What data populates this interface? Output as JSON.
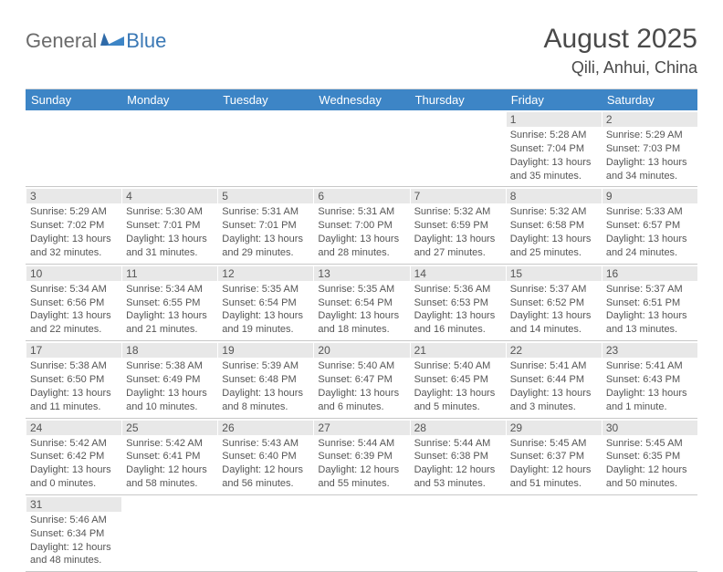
{
  "logo": {
    "part1": "General",
    "part2": "Blue"
  },
  "header": {
    "month_title": "August 2025",
    "location": "Qili, Anhui, China"
  },
  "colors": {
    "header_bg": "#3d85c6",
    "daynum_bg": "#e8e8e8",
    "text": "#555555",
    "logo_gray": "#6b6b6b",
    "logo_blue": "#3a78b5"
  },
  "day_names": [
    "Sunday",
    "Monday",
    "Tuesday",
    "Wednesday",
    "Thursday",
    "Friday",
    "Saturday"
  ],
  "weeks": [
    [
      {
        "n": "",
        "sr": "",
        "ss": "",
        "dl": ""
      },
      {
        "n": "",
        "sr": "",
        "ss": "",
        "dl": ""
      },
      {
        "n": "",
        "sr": "",
        "ss": "",
        "dl": ""
      },
      {
        "n": "",
        "sr": "",
        "ss": "",
        "dl": ""
      },
      {
        "n": "",
        "sr": "",
        "ss": "",
        "dl": ""
      },
      {
        "n": "1",
        "sr": "Sunrise: 5:28 AM",
        "ss": "Sunset: 7:04 PM",
        "dl": "Daylight: 13 hours and 35 minutes."
      },
      {
        "n": "2",
        "sr": "Sunrise: 5:29 AM",
        "ss": "Sunset: 7:03 PM",
        "dl": "Daylight: 13 hours and 34 minutes."
      }
    ],
    [
      {
        "n": "3",
        "sr": "Sunrise: 5:29 AM",
        "ss": "Sunset: 7:02 PM",
        "dl": "Daylight: 13 hours and 32 minutes."
      },
      {
        "n": "4",
        "sr": "Sunrise: 5:30 AM",
        "ss": "Sunset: 7:01 PM",
        "dl": "Daylight: 13 hours and 31 minutes."
      },
      {
        "n": "5",
        "sr": "Sunrise: 5:31 AM",
        "ss": "Sunset: 7:01 PM",
        "dl": "Daylight: 13 hours and 29 minutes."
      },
      {
        "n": "6",
        "sr": "Sunrise: 5:31 AM",
        "ss": "Sunset: 7:00 PM",
        "dl": "Daylight: 13 hours and 28 minutes."
      },
      {
        "n": "7",
        "sr": "Sunrise: 5:32 AM",
        "ss": "Sunset: 6:59 PM",
        "dl": "Daylight: 13 hours and 27 minutes."
      },
      {
        "n": "8",
        "sr": "Sunrise: 5:32 AM",
        "ss": "Sunset: 6:58 PM",
        "dl": "Daylight: 13 hours and 25 minutes."
      },
      {
        "n": "9",
        "sr": "Sunrise: 5:33 AM",
        "ss": "Sunset: 6:57 PM",
        "dl": "Daylight: 13 hours and 24 minutes."
      }
    ],
    [
      {
        "n": "10",
        "sr": "Sunrise: 5:34 AM",
        "ss": "Sunset: 6:56 PM",
        "dl": "Daylight: 13 hours and 22 minutes."
      },
      {
        "n": "11",
        "sr": "Sunrise: 5:34 AM",
        "ss": "Sunset: 6:55 PM",
        "dl": "Daylight: 13 hours and 21 minutes."
      },
      {
        "n": "12",
        "sr": "Sunrise: 5:35 AM",
        "ss": "Sunset: 6:54 PM",
        "dl": "Daylight: 13 hours and 19 minutes."
      },
      {
        "n": "13",
        "sr": "Sunrise: 5:35 AM",
        "ss": "Sunset: 6:54 PM",
        "dl": "Daylight: 13 hours and 18 minutes."
      },
      {
        "n": "14",
        "sr": "Sunrise: 5:36 AM",
        "ss": "Sunset: 6:53 PM",
        "dl": "Daylight: 13 hours and 16 minutes."
      },
      {
        "n": "15",
        "sr": "Sunrise: 5:37 AM",
        "ss": "Sunset: 6:52 PM",
        "dl": "Daylight: 13 hours and 14 minutes."
      },
      {
        "n": "16",
        "sr": "Sunrise: 5:37 AM",
        "ss": "Sunset: 6:51 PM",
        "dl": "Daylight: 13 hours and 13 minutes."
      }
    ],
    [
      {
        "n": "17",
        "sr": "Sunrise: 5:38 AM",
        "ss": "Sunset: 6:50 PM",
        "dl": "Daylight: 13 hours and 11 minutes."
      },
      {
        "n": "18",
        "sr": "Sunrise: 5:38 AM",
        "ss": "Sunset: 6:49 PM",
        "dl": "Daylight: 13 hours and 10 minutes."
      },
      {
        "n": "19",
        "sr": "Sunrise: 5:39 AM",
        "ss": "Sunset: 6:48 PM",
        "dl": "Daylight: 13 hours and 8 minutes."
      },
      {
        "n": "20",
        "sr": "Sunrise: 5:40 AM",
        "ss": "Sunset: 6:47 PM",
        "dl": "Daylight: 13 hours and 6 minutes."
      },
      {
        "n": "21",
        "sr": "Sunrise: 5:40 AM",
        "ss": "Sunset: 6:45 PM",
        "dl": "Daylight: 13 hours and 5 minutes."
      },
      {
        "n": "22",
        "sr": "Sunrise: 5:41 AM",
        "ss": "Sunset: 6:44 PM",
        "dl": "Daylight: 13 hours and 3 minutes."
      },
      {
        "n": "23",
        "sr": "Sunrise: 5:41 AM",
        "ss": "Sunset: 6:43 PM",
        "dl": "Daylight: 13 hours and 1 minute."
      }
    ],
    [
      {
        "n": "24",
        "sr": "Sunrise: 5:42 AM",
        "ss": "Sunset: 6:42 PM",
        "dl": "Daylight: 13 hours and 0 minutes."
      },
      {
        "n": "25",
        "sr": "Sunrise: 5:42 AM",
        "ss": "Sunset: 6:41 PM",
        "dl": "Daylight: 12 hours and 58 minutes."
      },
      {
        "n": "26",
        "sr": "Sunrise: 5:43 AM",
        "ss": "Sunset: 6:40 PM",
        "dl": "Daylight: 12 hours and 56 minutes."
      },
      {
        "n": "27",
        "sr": "Sunrise: 5:44 AM",
        "ss": "Sunset: 6:39 PM",
        "dl": "Daylight: 12 hours and 55 minutes."
      },
      {
        "n": "28",
        "sr": "Sunrise: 5:44 AM",
        "ss": "Sunset: 6:38 PM",
        "dl": "Daylight: 12 hours and 53 minutes."
      },
      {
        "n": "29",
        "sr": "Sunrise: 5:45 AM",
        "ss": "Sunset: 6:37 PM",
        "dl": "Daylight: 12 hours and 51 minutes."
      },
      {
        "n": "30",
        "sr": "Sunrise: 5:45 AM",
        "ss": "Sunset: 6:35 PM",
        "dl": "Daylight: 12 hours and 50 minutes."
      }
    ],
    [
      {
        "n": "31",
        "sr": "Sunrise: 5:46 AM",
        "ss": "Sunset: 6:34 PM",
        "dl": "Daylight: 12 hours and 48 minutes."
      },
      {
        "n": "",
        "sr": "",
        "ss": "",
        "dl": ""
      },
      {
        "n": "",
        "sr": "",
        "ss": "",
        "dl": ""
      },
      {
        "n": "",
        "sr": "",
        "ss": "",
        "dl": ""
      },
      {
        "n": "",
        "sr": "",
        "ss": "",
        "dl": ""
      },
      {
        "n": "",
        "sr": "",
        "ss": "",
        "dl": ""
      },
      {
        "n": "",
        "sr": "",
        "ss": "",
        "dl": ""
      }
    ]
  ]
}
